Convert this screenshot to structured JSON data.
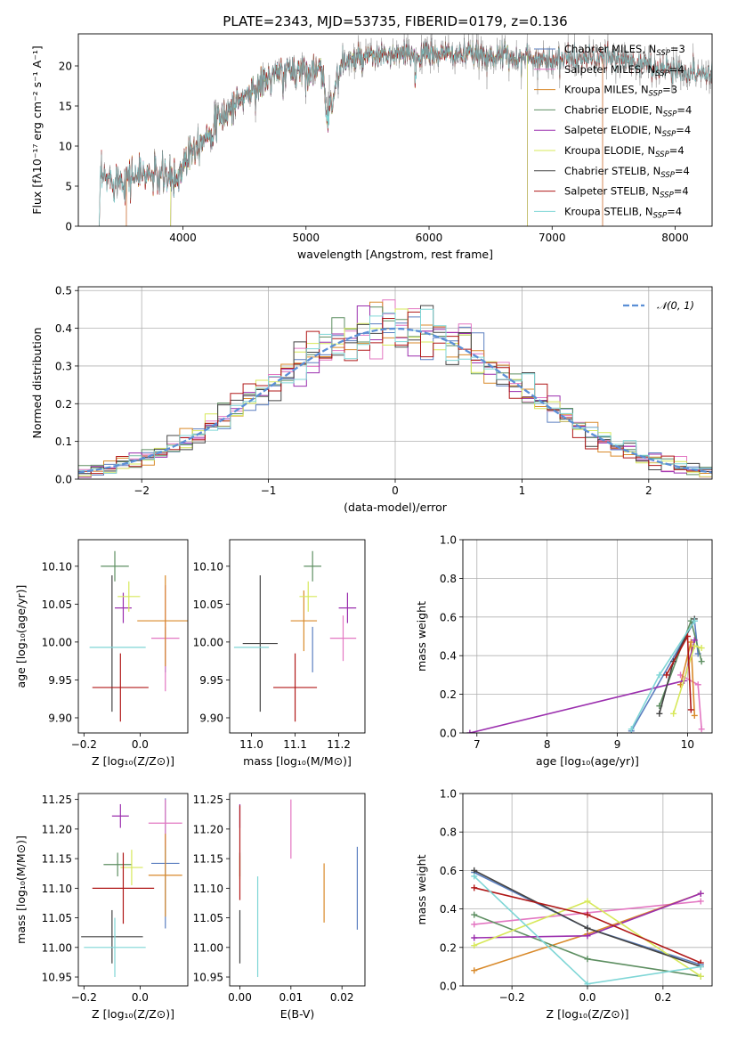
{
  "colors": {
    "Chabrier MILES": "#5b7fc0",
    "Salpeter MILES": "#e377c2",
    "Kroupa MILES": "#d98a2b",
    "Chabrier ELODIE": "#5e8f62",
    "Salpeter ELODIE": "#9b2fae",
    "Kroupa ELODIE": "#d7e85a",
    "Chabrier STELIB": "#444444",
    "Salpeter STELIB": "#b01818",
    "Kroupa STELIB": "#7fd6d6",
    "normal": "#5b8fd6"
  },
  "chart_data": [
    {
      "id": "spectrum",
      "type": "line",
      "title": "PLATE=2343, MJD=53735, FIBERID=0179, z=0.136",
      "xlabel": "wavelength [Angstrom, rest frame]",
      "ylabel": "Flux [fλ10⁻¹⁷ erg cm⁻² s⁻¹ A⁻¹]",
      "xlim": [
        3150,
        8300
      ],
      "ylim": [
        0,
        24
      ],
      "grid": false,
      "legend": "top-right",
      "xticks": [
        4000,
        5000,
        6000,
        7000,
        8000
      ],
      "yticks": [
        0,
        5,
        10,
        15,
        20
      ],
      "legend_entries": [
        {
          "name": "Chabrier MILES",
          "ssp": "3"
        },
        {
          "name": "Salpeter MILES",
          "ssp": "4"
        },
        {
          "name": "Kroupa MILES",
          "ssp": "3"
        },
        {
          "name": "Chabrier ELODIE",
          "ssp": "4"
        },
        {
          "name": "Salpeter ELODIE",
          "ssp": "4"
        },
        {
          "name": "Kroupa ELODIE",
          "ssp": "4"
        },
        {
          "name": "Chabrier STELIB",
          "ssp": "4"
        },
        {
          "name": "Salpeter STELIB",
          "ssp": "4"
        },
        {
          "name": "Kroupa STELIB",
          "ssp": "4"
        }
      ],
      "continuum": [
        [
          3350,
          5.8
        ],
        [
          3500,
          6.0
        ],
        [
          3700,
          6.5
        ],
        [
          3950,
          5.8
        ],
        [
          4050,
          9.5
        ],
        [
          4200,
          11.5
        ],
        [
          4400,
          15.0
        ],
        [
          4700,
          18.5
        ],
        [
          4900,
          19.5
        ],
        [
          5100,
          19.5
        ],
        [
          5200,
          15.5
        ],
        [
          5300,
          20.5
        ],
        [
          5600,
          21.2
        ],
        [
          6000,
          21.5
        ],
        [
          6500,
          21.3
        ],
        [
          7000,
          20.8
        ],
        [
          7500,
          21.0
        ],
        [
          7800,
          20.0
        ],
        [
          8000,
          19.5
        ],
        [
          8250,
          19.0
        ]
      ],
      "model_ranges": {
        "MILES": [
          3540,
          7410
        ],
        "ELODIE": [
          3900,
          6800
        ],
        "STELIB": [
          3320,
          8300
        ]
      }
    },
    {
      "id": "residuals",
      "type": "line",
      "xlabel": "(data-model)/error",
      "ylabel": "Normed distribution",
      "xlim": [
        -2.5,
        2.5
      ],
      "ylim": [
        0,
        0.51
      ],
      "grid": true,
      "legend": "top-right",
      "xticks": [
        -2,
        -1,
        0,
        1,
        2
      ],
      "yticks": [
        0.0,
        0.1,
        0.2,
        0.3,
        0.4,
        0.5
      ],
      "reference": {
        "name": "𝒩(0, 1)",
        "mean": 0,
        "sigma": 1
      },
      "bin_width": 0.1
    },
    {
      "id": "age-vs-Z",
      "type": "scatter",
      "xlabel": "Z [log₁₀(Z/Z⊙)]",
      "ylabel": "age  [log₁₀(age/yr)]",
      "xlim": [
        -0.22,
        0.17
      ],
      "ylim": [
        9.88,
        10.135
      ],
      "grid": false,
      "xticks": [
        -0.2,
        0.0
      ],
      "yticks": [
        9.9,
        9.95,
        10.0,
        10.05,
        10.1
      ],
      "points": [
        {
          "model": "Chabrier MILES",
          "x": 0.09,
          "y": 9.99,
          "xerr": 0.0,
          "yerr": 0.03
        },
        {
          "model": "Salpeter MILES",
          "x": 0.09,
          "y": 10.005,
          "xerr": 0.05,
          "yerr": 0.07
        },
        {
          "model": "Kroupa MILES",
          "x": 0.09,
          "y": 10.028,
          "xerr": 0.1,
          "yerr": 0.06
        },
        {
          "model": "Chabrier ELODIE",
          "x": -0.09,
          "y": 10.1,
          "xerr": 0.05,
          "yerr": 0.02
        },
        {
          "model": "Salpeter ELODIE",
          "x": -0.06,
          "y": 10.045,
          "xerr": 0.03,
          "yerr": 0.02
        },
        {
          "model": "Kroupa ELODIE",
          "x": -0.04,
          "y": 10.06,
          "xerr": 0.04,
          "yerr": 0.02
        },
        {
          "model": "Chabrier STELIB",
          "x": -0.1,
          "y": 9.998,
          "xerr": 0.0,
          "yerr": 0.09
        },
        {
          "model": "Salpeter STELIB",
          "x": -0.07,
          "y": 9.94,
          "xerr": 0.1,
          "yerr": 0.045
        },
        {
          "model": "Kroupa STELIB",
          "x": -0.08,
          "y": 9.993,
          "xerr": 0.1,
          "yerr": 0.0
        }
      ]
    },
    {
      "id": "age-vs-mass",
      "type": "scatter",
      "xlabel": "mass [log₁₀(M/M⊙)]",
      "xlim": [
        10.95,
        11.26
      ],
      "ylim": [
        9.88,
        10.135
      ],
      "grid": false,
      "xticks": [
        11.0,
        11.1,
        11.2
      ],
      "yticks": [
        9.9,
        9.95,
        10.0,
        10.05,
        10.1
      ],
      "points": [
        {
          "model": "Chabrier MILES",
          "x": 11.14,
          "y": 9.99,
          "xerr": 0.0,
          "yerr": 0.03
        },
        {
          "model": "Salpeter MILES",
          "x": 11.21,
          "y": 10.005,
          "xerr": 0.03,
          "yerr": 0.03
        },
        {
          "model": "Kroupa MILES",
          "x": 11.12,
          "y": 10.028,
          "xerr": 0.03,
          "yerr": 0.04
        },
        {
          "model": "Chabrier ELODIE",
          "x": 11.14,
          "y": 10.1,
          "xerr": 0.02,
          "yerr": 0.02
        },
        {
          "model": "Salpeter ELODIE",
          "x": 11.22,
          "y": 10.045,
          "xerr": 0.02,
          "yerr": 0.02
        },
        {
          "model": "Kroupa ELODIE",
          "x": 11.13,
          "y": 10.06,
          "xerr": 0.02,
          "yerr": 0.02
        },
        {
          "model": "Chabrier STELIB",
          "x": 11.02,
          "y": 9.998,
          "xerr": 0.04,
          "yerr": 0.09
        },
        {
          "model": "Salpeter STELIB",
          "x": 11.1,
          "y": 9.94,
          "xerr": 0.05,
          "yerr": 0.045
        },
        {
          "model": "Kroupa STELIB",
          "x": 11.0,
          "y": 9.993,
          "xerr": 0.04,
          "yerr": 0.0
        }
      ]
    },
    {
      "id": "weight-vs-age",
      "type": "line",
      "xlabel": "age  [log₁₀(age/yr)]",
      "ylabel": "mass weight",
      "xlim": [
        6.8,
        10.35
      ],
      "ylim": [
        0,
        1
      ],
      "grid": true,
      "xticks": [
        7,
        8,
        9,
        10
      ],
      "yticks": [
        0.0,
        0.2,
        0.4,
        0.6,
        0.8,
        1.0
      ],
      "series": [
        {
          "model": "Chabrier MILES",
          "x": [
            9.2,
            10.1,
            10.15
          ],
          "y": [
            0.01,
            0.58,
            0.41
          ]
        },
        {
          "model": "Salpeter MILES",
          "x": [
            9.9,
            10.15,
            10.2
          ],
          "y": [
            0.3,
            0.25,
            0.02
          ]
        },
        {
          "model": "Kroupa MILES",
          "x": [
            9.9,
            10.05,
            10.1
          ],
          "y": [
            0.25,
            0.47,
            0.09
          ]
        },
        {
          "model": "Chabrier ELODIE",
          "x": [
            9.6,
            10.05,
            10.2
          ],
          "y": [
            0.14,
            0.58,
            0.37
          ]
        },
        {
          "model": "Salpeter ELODIE",
          "x": [
            6.9,
            9.95,
            10.1
          ],
          "y": [
            0.0,
            0.27,
            0.48
          ]
        },
        {
          "model": "Kroupa ELODIE",
          "x": [
            9.8,
            10.1,
            10.2
          ],
          "y": [
            0.1,
            0.45,
            0.44
          ]
        },
        {
          "model": "Chabrier STELIB",
          "x": [
            9.6,
            9.8,
            10.1
          ],
          "y": [
            0.1,
            0.37,
            0.59
          ]
        },
        {
          "model": "Salpeter STELIB",
          "x": [
            9.7,
            10.0,
            10.05
          ],
          "y": [
            0.3,
            0.5,
            0.12
          ]
        },
        {
          "model": "Kroupa STELIB",
          "x": [
            9.2,
            9.6,
            10.1
          ],
          "y": [
            0.02,
            0.3,
            0.58
          ]
        }
      ]
    },
    {
      "id": "mass-vs-Z",
      "type": "scatter",
      "xlabel": "Z [log₁₀(Z/Z⊙)]",
      "ylabel": "mass [log₁₀(M/M⊙)]",
      "xlim": [
        -0.22,
        0.17
      ],
      "ylim": [
        10.935,
        11.26
      ],
      "grid": false,
      "xticks": [
        -0.2,
        0.0
      ],
      "yticks": [
        10.95,
        11.0,
        11.05,
        11.1,
        11.15,
        11.2,
        11.25
      ],
      "points": [
        {
          "model": "Chabrier MILES",
          "x": 0.09,
          "y": 11.142,
          "xerr": 0.05,
          "yerr": 0.11
        },
        {
          "model": "Salpeter MILES",
          "x": 0.09,
          "y": 11.21,
          "xerr": 0.06,
          "yerr": 0.04
        },
        {
          "model": "Kroupa MILES",
          "x": 0.09,
          "y": 11.122,
          "xerr": 0.06,
          "yerr": 0.07
        },
        {
          "model": "Chabrier ELODIE",
          "x": -0.08,
          "y": 11.14,
          "xerr": 0.05,
          "yerr": 0.02
        },
        {
          "model": "Salpeter ELODIE",
          "x": -0.07,
          "y": 11.222,
          "xerr": 0.03,
          "yerr": 0.02
        },
        {
          "model": "Kroupa ELODIE",
          "x": -0.03,
          "y": 11.135,
          "xerr": 0.04,
          "yerr": 0.03
        },
        {
          "model": "Chabrier STELIB",
          "x": -0.1,
          "y": 11.018,
          "xerr": 0.11,
          "yerr": 0.045
        },
        {
          "model": "Salpeter STELIB",
          "x": -0.06,
          "y": 11.1,
          "xerr": 0.11,
          "yerr": 0.06
        },
        {
          "model": "Kroupa STELIB",
          "x": -0.09,
          "y": 11.0,
          "xerr": 0.11,
          "yerr": 0.05
        }
      ]
    },
    {
      "id": "mass-vs-EBV",
      "type": "scatter",
      "xlabel": "E(B-V)",
      "xlim": [
        -0.002,
        0.0245
      ],
      "ylim": [
        10.935,
        11.26
      ],
      "grid": false,
      "xticks": [
        0.0,
        0.01,
        0.02
      ],
      "yticks": [
        10.95,
        11.0,
        11.05,
        11.1,
        11.15,
        11.2,
        11.25
      ],
      "points": [
        {
          "model": "Chabrier MILES",
          "x": 0.023,
          "y": 11.1,
          "xerr": 0.0,
          "yerr": 0.07
        },
        {
          "model": "Salpeter MILES",
          "x": 0.01,
          "y": 11.2,
          "xerr": 0.0,
          "yerr": 0.05
        },
        {
          "model": "Kroupa MILES",
          "x": 0.0165,
          "y": 11.092,
          "xerr": 0.0,
          "yerr": 0.05
        },
        {
          "model": "Chabrier ELODIE",
          "x": 0.0,
          "y": 11.14,
          "xerr": 0.0,
          "yerr": 0.02
        },
        {
          "model": "Salpeter ELODIE",
          "x": 0.0,
          "y": 11.222,
          "xerr": 0.0,
          "yerr": 0.02
        },
        {
          "model": "Kroupa ELODIE",
          "x": 0.0,
          "y": 11.135,
          "xerr": 0.0,
          "yerr": 0.02
        },
        {
          "model": "Chabrier STELIB",
          "x": 0.0,
          "y": 11.018,
          "xerr": 0.0,
          "yerr": 0.045
        },
        {
          "model": "Salpeter STELIB",
          "x": 0.0,
          "y": 11.16,
          "xerr": 0.0,
          "yerr": 0.08
        },
        {
          "model": "Kroupa STELIB",
          "x": 0.0035,
          "y": 11.035,
          "xerr": 0.0,
          "yerr": 0.085
        }
      ]
    },
    {
      "id": "weight-vs-Z",
      "type": "line",
      "xlabel": "Z [log₁₀(Z/Z⊙)]",
      "ylabel": "mass weight",
      "xlim": [
        -0.33,
        0.33
      ],
      "ylim": [
        0,
        1
      ],
      "grid": true,
      "xticks": [
        -0.2,
        0.0,
        0.2
      ],
      "yticks": [
        0.0,
        0.2,
        0.4,
        0.6,
        0.8,
        1.0
      ],
      "series": [
        {
          "model": "Chabrier MILES",
          "x": [
            -0.3,
            0.0,
            0.3
          ],
          "y": [
            0.59,
            0.3,
            0.11
          ]
        },
        {
          "model": "Salpeter MILES",
          "x": [
            -0.3,
            0.0,
            0.3
          ],
          "y": [
            0.32,
            0.38,
            0.44
          ]
        },
        {
          "model": "Kroupa MILES",
          "x": [
            -0.3,
            0.0,
            0.3
          ],
          "y": [
            0.08,
            0.27,
            0.48
          ]
        },
        {
          "model": "Chabrier ELODIE",
          "x": [
            -0.3,
            0.0,
            0.3
          ],
          "y": [
            0.37,
            0.14,
            0.05
          ]
        },
        {
          "model": "Salpeter ELODIE",
          "x": [
            -0.3,
            0.0,
            0.3
          ],
          "y": [
            0.25,
            0.26,
            0.48
          ]
        },
        {
          "model": "Kroupa ELODIE",
          "x": [
            -0.3,
            0.0,
            0.3
          ],
          "y": [
            0.21,
            0.44,
            0.05
          ]
        },
        {
          "model": "Chabrier STELIB",
          "x": [
            -0.3,
            0.0,
            0.3
          ],
          "y": [
            0.6,
            0.3,
            0.1
          ]
        },
        {
          "model": "Salpeter STELIB",
          "x": [
            -0.3,
            0.0,
            0.3
          ],
          "y": [
            0.51,
            0.37,
            0.12
          ]
        },
        {
          "model": "Kroupa STELIB",
          "x": [
            -0.3,
            0.0,
            0.3
          ],
          "y": [
            0.57,
            0.01,
            0.1
          ]
        }
      ]
    }
  ]
}
